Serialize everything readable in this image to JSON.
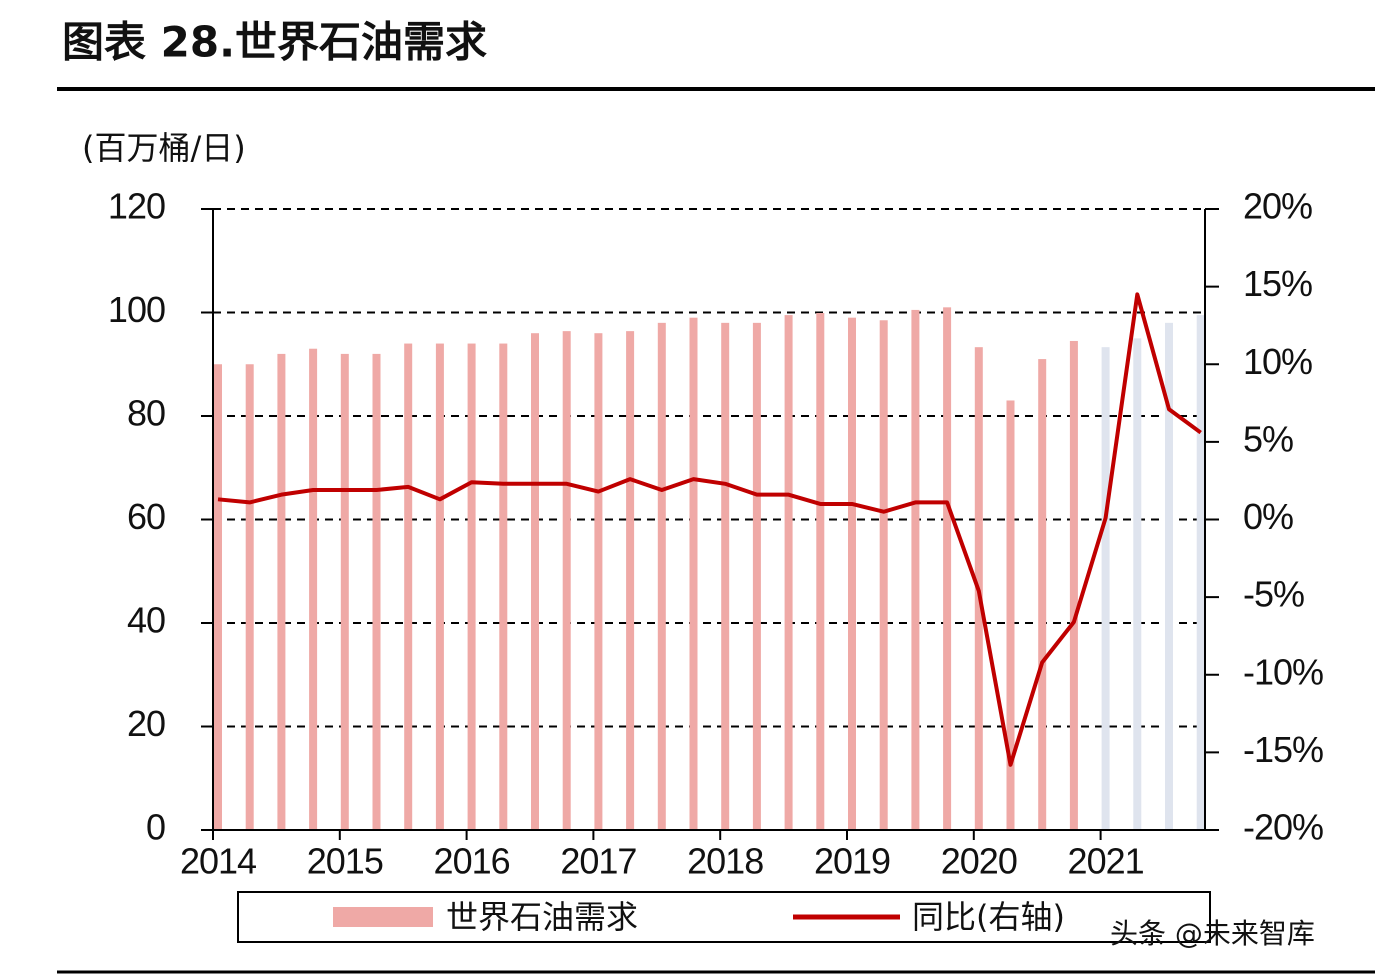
{
  "chart_data": {
    "type": "bar_line",
    "title": "图表 28.世界石油需求",
    "y_label": "(百万桶/日)",
    "watermark": "头条 @未来智库",
    "categories": [
      "2014",
      null,
      null,
      null,
      "2015",
      null,
      null,
      null,
      "2016",
      null,
      null,
      null,
      "2017",
      null,
      null,
      null,
      "2018",
      null,
      null,
      null,
      "2019",
      null,
      null,
      null,
      "2020",
      null,
      null,
      null,
      "2021",
      null,
      null,
      null
    ],
    "series": [
      {
        "name": "世界石油需求",
        "type": "bar",
        "color": "#efa9a6",
        "bar_colors": [
          "#efa9a6",
          "#efa9a6",
          "#efa9a6",
          "#efa9a6",
          "#efa9a6",
          "#efa9a6",
          "#efa9a6",
          "#efa9a6",
          "#efa9a6",
          "#efa9a6",
          "#efa9a6",
          "#efa9a6",
          "#efa9a6",
          "#efa9a6",
          "#efa9a6",
          "#efa9a6",
          "#efa9a6",
          "#efa9a6",
          "#efa9a6",
          "#efa9a6",
          "#efa9a6",
          "#efa9a6",
          "#efa9a6",
          "#efa9a6",
          "#efa9a6",
          "#efa9a6",
          "#efa9a6",
          "#efa9a6",
          "#dfe4ee",
          "#dfe4ee",
          "#dfe4ee",
          "#dfe4ee"
        ],
        "values": [
          90,
          90,
          92,
          93,
          92,
          92,
          94,
          94,
          94,
          94,
          96,
          96.4,
          96,
          96.4,
          98,
          99,
          98,
          98,
          99.5,
          99.9,
          99,
          98.5,
          100.5,
          101,
          93.3,
          83,
          91,
          94.5,
          93.3,
          95,
          98,
          99.5
        ]
      },
      {
        "name": "同比(右轴)",
        "type": "line",
        "axis": "y2",
        "color": "#c00000",
        "values": [
          1.3,
          1.1,
          1.6,
          1.9,
          1.9,
          1.9,
          2.1,
          1.3,
          2.4,
          2.3,
          2.3,
          2.3,
          1.8,
          2.6,
          1.9,
          2.6,
          2.3,
          1.6,
          1.6,
          1.0,
          1.0,
          0.5,
          1.1,
          1.1,
          -4.6,
          -15.8,
          -9.2,
          -6.6,
          0.1,
          14.5,
          7.1,
          5.6
        ]
      }
    ],
    "ylim": [
      0,
      120
    ],
    "yticks": [
      0,
      20,
      40,
      60,
      80,
      100,
      120
    ],
    "y2lim": [
      -20,
      20
    ],
    "y2ticks": [
      {
        "value": -20,
        "label": "-20%"
      },
      {
        "value": -15,
        "label": "-15%"
      },
      {
        "value": -10,
        "label": "-10%"
      },
      {
        "value": -5,
        "label": "-5%"
      },
      {
        "value": 0,
        "label": "0%"
      },
      {
        "value": 5,
        "label": "5%"
      },
      {
        "value": 10,
        "label": "10%"
      },
      {
        "value": 15,
        "label": "15%"
      },
      {
        "value": 20,
        "label": "20%"
      }
    ],
    "grid": true
  }
}
